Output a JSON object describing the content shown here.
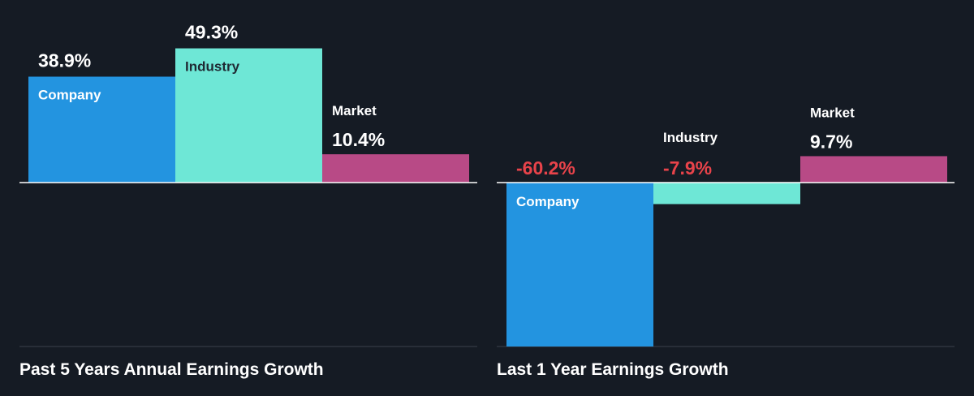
{
  "colors": {
    "background": "#151b24",
    "company": "#2394e0",
    "industry": "#6ee7d6",
    "market": "#b84a86",
    "positive_value_text": "#ffffff",
    "negative_value_text": "#e8434a",
    "bar_label_light": "#ffffff",
    "bar_label_dark": "#1f2a33",
    "axis_line": "#ffffff",
    "bottom_line": "#3a414b"
  },
  "chart_data": [
    {
      "type": "bar",
      "title": "Past 5 Years Annual Earnings Growth",
      "categories": [
        "Company",
        "Industry",
        "Market"
      ],
      "values": [
        38.9,
        49.3,
        10.4
      ],
      "value_labels": [
        "38.9%",
        "49.3%",
        "10.4%"
      ],
      "unit": "%",
      "ylim": [
        -60.2,
        49.3
      ],
      "grid": false,
      "legend": "none"
    },
    {
      "type": "bar",
      "title": "Last 1 Year Earnings Growth",
      "categories": [
        "Company",
        "Industry",
        "Market"
      ],
      "values": [
        -60.2,
        -7.9,
        9.7
      ],
      "value_labels": [
        "-60.2%",
        "-7.9%",
        "9.7%"
      ],
      "unit": "%",
      "ylim": [
        -60.2,
        49.3
      ],
      "grid": false,
      "legend": "none"
    }
  ]
}
